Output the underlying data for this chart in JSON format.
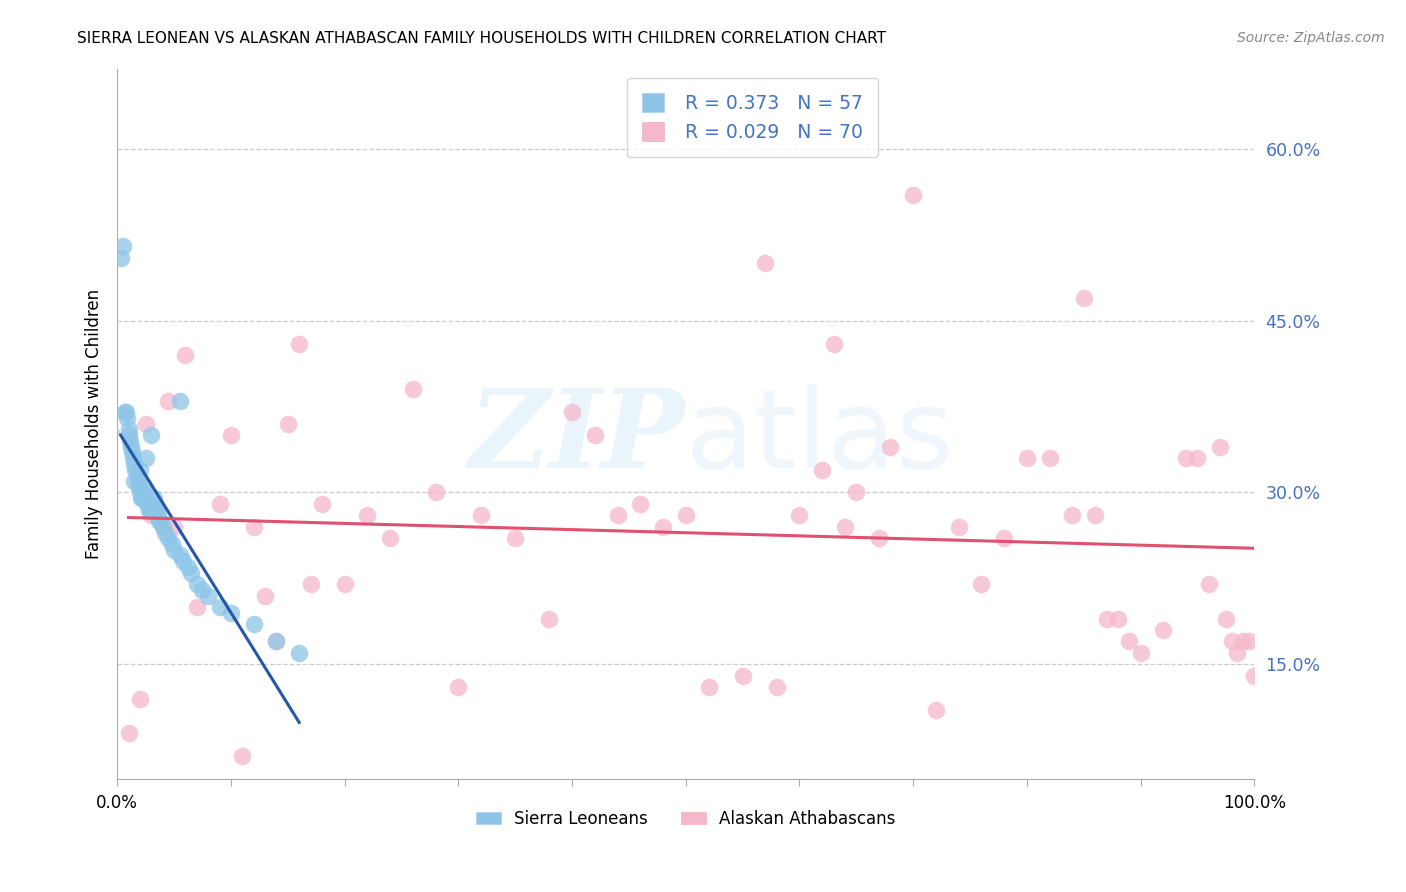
{
  "title": "SIERRA LEONEAN VS ALASKAN ATHABASCAN FAMILY HOUSEHOLDS WITH CHILDREN CORRELATION CHART",
  "source": "Source: ZipAtlas.com",
  "ylabel": "Family Households with Children",
  "legend_blue_label": "Sierra Leoneans",
  "legend_pink_label": "Alaskan Athabascans",
  "legend_blue_R": 0.373,
  "legend_blue_N": 57,
  "legend_pink_R": 0.029,
  "legend_pink_N": 70,
  "ytick_values": [
    0.15,
    0.3,
    0.45,
    0.6
  ],
  "ytick_labels": [
    "15.0%",
    "30.0%",
    "45.0%",
    "60.0%"
  ],
  "xlim": [
    0.0,
    1.0
  ],
  "ylim": [
    0.05,
    0.67
  ],
  "blue_scatter_color": "#8dc5e8",
  "blue_line_color": "#2457a8",
  "blue_dash_color": "#b8cfe8",
  "pink_scatter_color": "#f5b8cb",
  "pink_line_color": "#e05070",
  "grid_color": "#cccccc",
  "right_tick_color": "#4472c4",
  "blue_x": [
    0.003,
    0.005,
    0.007,
    0.008,
    0.009,
    0.01,
    0.011,
    0.012,
    0.013,
    0.014,
    0.015,
    0.016,
    0.017,
    0.018,
    0.019,
    0.02,
    0.021,
    0.022,
    0.023,
    0.024,
    0.025,
    0.026,
    0.027,
    0.028,
    0.029,
    0.03,
    0.031,
    0.032,
    0.033,
    0.034,
    0.035,
    0.036,
    0.037,
    0.038,
    0.04,
    0.042,
    0.045,
    0.048,
    0.05,
    0.055,
    0.058,
    0.062,
    0.065,
    0.07,
    0.075,
    0.08,
    0.09,
    0.1,
    0.12,
    0.14,
    0.16,
    0.055,
    0.03,
    0.025,
    0.02,
    0.015,
    0.01
  ],
  "blue_y": [
    0.505,
    0.515,
    0.37,
    0.37,
    0.365,
    0.355,
    0.345,
    0.34,
    0.335,
    0.33,
    0.325,
    0.32,
    0.315,
    0.31,
    0.305,
    0.3,
    0.295,
    0.295,
    0.305,
    0.3,
    0.295,
    0.29,
    0.29,
    0.285,
    0.285,
    0.285,
    0.285,
    0.295,
    0.29,
    0.285,
    0.28,
    0.28,
    0.275,
    0.275,
    0.27,
    0.265,
    0.26,
    0.255,
    0.25,
    0.245,
    0.24,
    0.235,
    0.23,
    0.22,
    0.215,
    0.21,
    0.2,
    0.195,
    0.185,
    0.17,
    0.16,
    0.38,
    0.35,
    0.33,
    0.32,
    0.31,
    0.35
  ],
  "pink_x": [
    0.01,
    0.02,
    0.025,
    0.03,
    0.04,
    0.045,
    0.05,
    0.06,
    0.07,
    0.09,
    0.1,
    0.11,
    0.12,
    0.13,
    0.14,
    0.15,
    0.16,
    0.17,
    0.18,
    0.2,
    0.22,
    0.24,
    0.26,
    0.28,
    0.3,
    0.32,
    0.35,
    0.38,
    0.4,
    0.42,
    0.44,
    0.46,
    0.48,
    0.5,
    0.52,
    0.55,
    0.58,
    0.6,
    0.62,
    0.64,
    0.65,
    0.67,
    0.68,
    0.7,
    0.72,
    0.74,
    0.76,
    0.78,
    0.8,
    0.82,
    0.84,
    0.85,
    0.86,
    0.87,
    0.88,
    0.89,
    0.9,
    0.92,
    0.94,
    0.95,
    0.96,
    0.97,
    0.975,
    0.98,
    0.985,
    0.99,
    0.995,
    1.0,
    0.63,
    0.57
  ],
  "pink_y": [
    0.09,
    0.12,
    0.36,
    0.28,
    0.27,
    0.38,
    0.27,
    0.42,
    0.2,
    0.29,
    0.35,
    0.07,
    0.27,
    0.21,
    0.17,
    0.36,
    0.43,
    0.22,
    0.29,
    0.22,
    0.28,
    0.26,
    0.39,
    0.3,
    0.13,
    0.28,
    0.26,
    0.19,
    0.37,
    0.35,
    0.28,
    0.29,
    0.27,
    0.28,
    0.13,
    0.14,
    0.13,
    0.28,
    0.32,
    0.27,
    0.3,
    0.26,
    0.34,
    0.56,
    0.11,
    0.27,
    0.22,
    0.26,
    0.33,
    0.33,
    0.28,
    0.47,
    0.28,
    0.19,
    0.19,
    0.17,
    0.16,
    0.18,
    0.33,
    0.33,
    0.22,
    0.34,
    0.19,
    0.17,
    0.16,
    0.17,
    0.17,
    0.14,
    0.43,
    0.5
  ]
}
